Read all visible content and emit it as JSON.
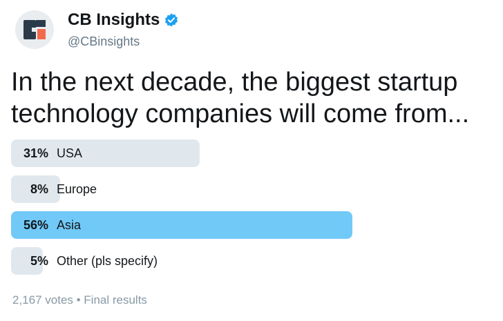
{
  "account": {
    "display_name": "CB Insights",
    "handle": "@CBinsights",
    "verified": true,
    "avatar_icon": "cb-insights-logo-icon",
    "avatar_colors": {
      "dark": "#2b3b4a",
      "accent": "#f26a4b",
      "background": "#e9edf0"
    }
  },
  "tweet": {
    "text": "In the next decade, the biggest startup technology companies will come from..."
  },
  "poll": {
    "options": [
      {
        "percent_label": "31%",
        "percent": 31,
        "label": "USA"
      },
      {
        "percent_label": "8%",
        "percent": 8,
        "label": "Europe"
      },
      {
        "percent_label": "56%",
        "percent": 56,
        "label": "Asia",
        "winner": true
      },
      {
        "percent_label": "5%",
        "percent": 5,
        "label": "Other (pls specify)"
      }
    ],
    "footer": "2,167 votes • Final results",
    "colors": {
      "bar": "#e1e8ed",
      "winner_bar": "#71c9f8"
    }
  }
}
